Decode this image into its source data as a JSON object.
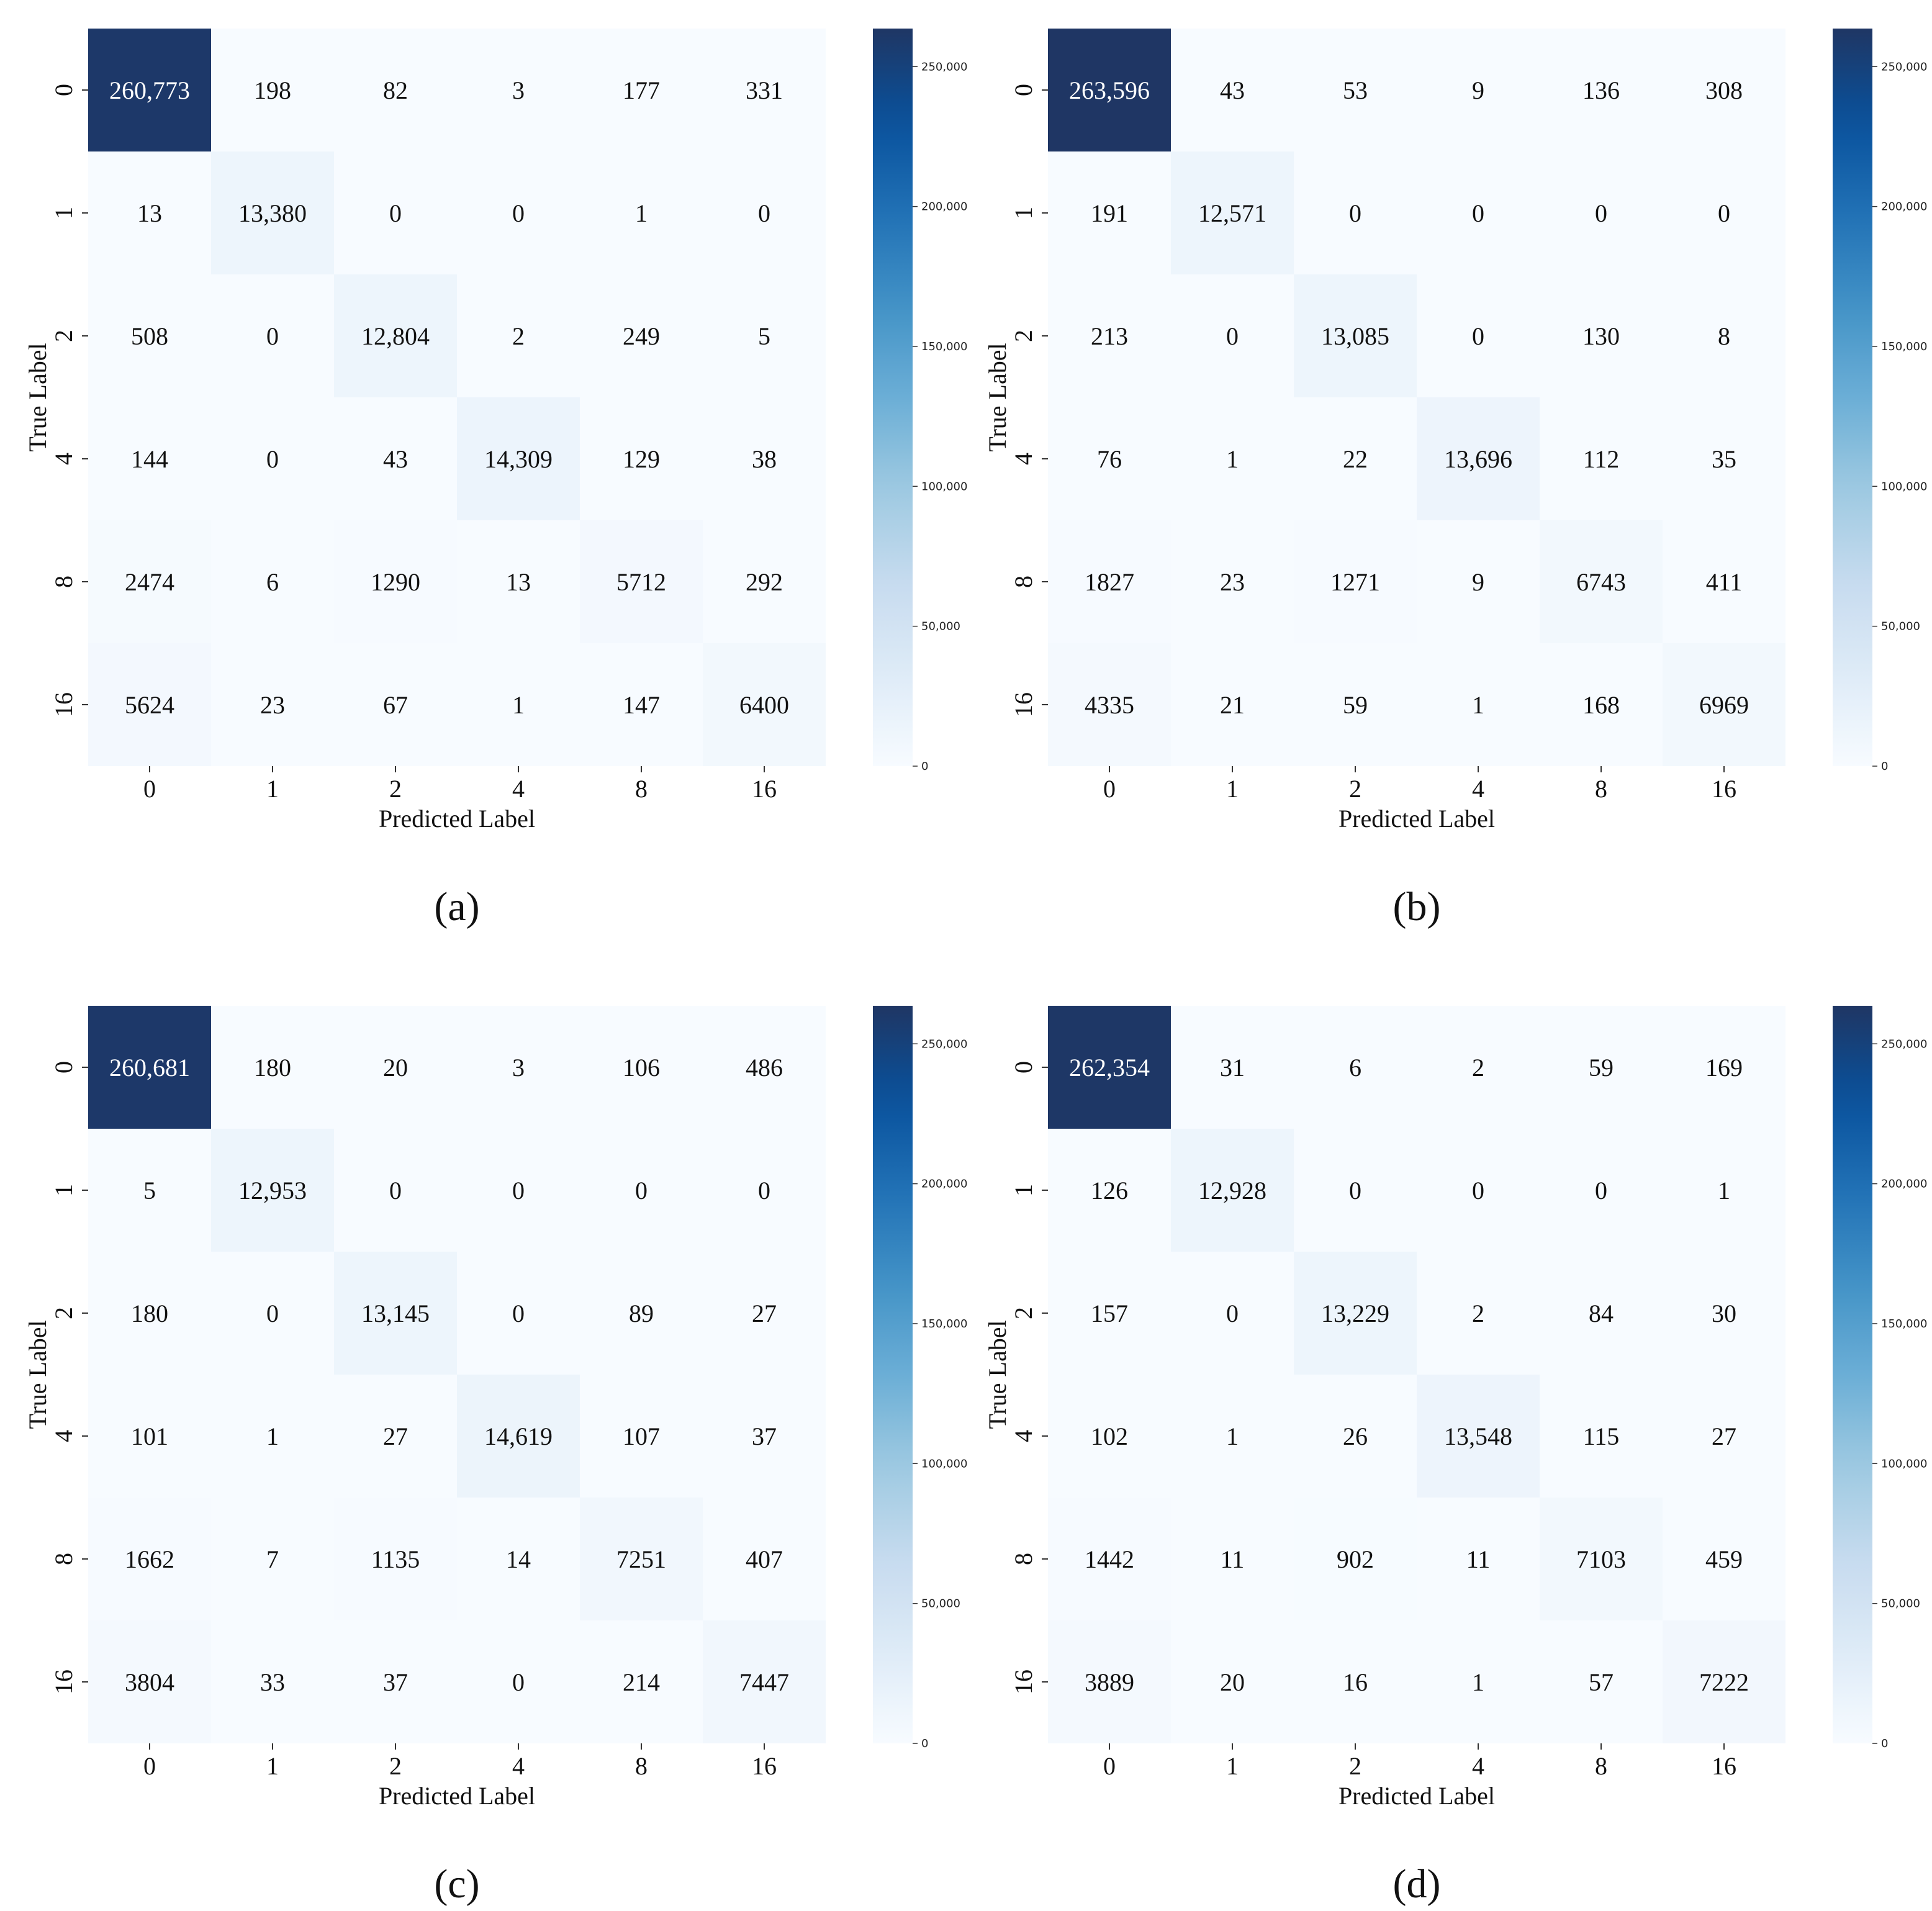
{
  "chart_data": [
    {
      "type": "heatmap",
      "caption": "(a)",
      "xlabel": "Predicted Label",
      "ylabel": "True Label",
      "x_categories": [
        "0",
        "1",
        "2",
        "4",
        "8",
        "16"
      ],
      "y_categories": [
        "0",
        "1",
        "2",
        "4",
        "8",
        "16"
      ],
      "values": [
        [
          260773,
          198,
          82,
          3,
          177,
          331
        ],
        [
          13,
          13380,
          0,
          0,
          1,
          0
        ],
        [
          508,
          0,
          12804,
          2,
          249,
          5
        ],
        [
          144,
          0,
          43,
          14309,
          129,
          38
        ],
        [
          2474,
          6,
          1290,
          13,
          5712,
          292
        ],
        [
          5624,
          23,
          67,
          1,
          147,
          6400
        ]
      ],
      "cell_labels": [
        [
          "260,773",
          "198",
          "82",
          "3",
          "177",
          "331"
        ],
        [
          "13",
          "13,380",
          "0",
          "0",
          "1",
          "0"
        ],
        [
          "508",
          "0",
          "12,804",
          "2",
          "249",
          "5"
        ],
        [
          "144",
          "0",
          "43",
          "14,309",
          "129",
          "38"
        ],
        [
          "2474",
          "6",
          "1290",
          "13",
          "5712",
          "292"
        ],
        [
          "5624",
          "23",
          "67",
          "1",
          "147",
          "6400"
        ]
      ],
      "colorbar": {
        "range": [
          0,
          263596
        ],
        "ticks": [
          0,
          50000,
          100000,
          150000,
          200000,
          250000
        ],
        "tick_labels": [
          "0",
          "50,000",
          "100,000",
          "150,000",
          "200,000",
          "250,000"
        ],
        "colormap": "Blues"
      }
    },
    {
      "type": "heatmap",
      "caption": "(b)",
      "xlabel": "Predicted Label",
      "ylabel": "True Label",
      "x_categories": [
        "0",
        "1",
        "2",
        "4",
        "8",
        "16"
      ],
      "y_categories": [
        "0",
        "1",
        "2",
        "4",
        "8",
        "16"
      ],
      "values": [
        [
          263596,
          43,
          53,
          9,
          136,
          308
        ],
        [
          191,
          12571,
          0,
          0,
          0,
          0
        ],
        [
          213,
          0,
          13085,
          0,
          130,
          8
        ],
        [
          76,
          1,
          22,
          13696,
          112,
          35
        ],
        [
          1827,
          23,
          1271,
          9,
          6743,
          411
        ],
        [
          4335,
          21,
          59,
          1,
          168,
          6969
        ]
      ],
      "cell_labels": [
        [
          "263,596",
          "43",
          "53",
          "9",
          "136",
          "308"
        ],
        [
          "191",
          "12,571",
          "0",
          "0",
          "0",
          "0"
        ],
        [
          "213",
          "0",
          "13,085",
          "0",
          "130",
          "8"
        ],
        [
          "76",
          "1",
          "22",
          "13,696",
          "112",
          "35"
        ],
        [
          "1827",
          "23",
          "1271",
          "9",
          "6743",
          "411"
        ],
        [
          "4335",
          "21",
          "59",
          "1",
          "168",
          "6969"
        ]
      ],
      "colorbar": {
        "range": [
          0,
          263596
        ],
        "ticks": [
          0,
          50000,
          100000,
          150000,
          200000,
          250000
        ],
        "tick_labels": [
          "0",
          "50,000",
          "100,000",
          "150,000",
          "200,000",
          "250,000"
        ],
        "colormap": "Blues"
      }
    },
    {
      "type": "heatmap",
      "caption": "(c)",
      "xlabel": "Predicted Label",
      "ylabel": "True Label",
      "x_categories": [
        "0",
        "1",
        "2",
        "4",
        "8",
        "16"
      ],
      "y_categories": [
        "0",
        "1",
        "2",
        "4",
        "8",
        "16"
      ],
      "values": [
        [
          260681,
          180,
          20,
          3,
          106,
          486
        ],
        [
          5,
          12953,
          0,
          0,
          0,
          0
        ],
        [
          180,
          0,
          13145,
          0,
          89,
          27
        ],
        [
          101,
          1,
          27,
          14619,
          107,
          37
        ],
        [
          1662,
          7,
          1135,
          14,
          7251,
          407
        ],
        [
          3804,
          33,
          37,
          0,
          214,
          7447
        ]
      ],
      "cell_labels": [
        [
          "260,681",
          "180",
          "20",
          "3",
          "106",
          "486"
        ],
        [
          "5",
          "12,953",
          "0",
          "0",
          "0",
          "0"
        ],
        [
          "180",
          "0",
          "13,145",
          "0",
          "89",
          "27"
        ],
        [
          "101",
          "1",
          "27",
          "14,619",
          "107",
          "37"
        ],
        [
          "1662",
          "7",
          "1135",
          "14",
          "7251",
          "407"
        ],
        [
          "3804",
          "33",
          "37",
          "0",
          "214",
          "7447"
        ]
      ],
      "colorbar": {
        "range": [
          0,
          263596
        ],
        "ticks": [
          0,
          50000,
          100000,
          150000,
          200000,
          250000
        ],
        "tick_labels": [
          "0",
          "50,000",
          "100,000",
          "150,000",
          "200,000",
          "250,000"
        ],
        "colormap": "Blues"
      }
    },
    {
      "type": "heatmap",
      "caption": "(d)",
      "xlabel": "Predicted Label",
      "ylabel": "True Label",
      "x_categories": [
        "0",
        "1",
        "2",
        "4",
        "8",
        "16"
      ],
      "y_categories": [
        "0",
        "1",
        "2",
        "4",
        "8",
        "16"
      ],
      "values": [
        [
          262354,
          31,
          6,
          2,
          59,
          169
        ],
        [
          126,
          12928,
          0,
          0,
          0,
          1
        ],
        [
          157,
          0,
          13229,
          2,
          84,
          30
        ],
        [
          102,
          1,
          26,
          13548,
          115,
          27
        ],
        [
          1442,
          11,
          902,
          11,
          7103,
          459
        ],
        [
          3889,
          20,
          16,
          1,
          57,
          7222
        ]
      ],
      "cell_labels": [
        [
          "262,354",
          "31",
          "6",
          "2",
          "59",
          "169"
        ],
        [
          "126",
          "12,928",
          "0",
          "0",
          "0",
          "1"
        ],
        [
          "157",
          "0",
          "13,229",
          "2",
          "84",
          "30"
        ],
        [
          "102",
          "1",
          "26",
          "13,548",
          "115",
          "27"
        ],
        [
          "1442",
          "11",
          "902",
          "11",
          "7103",
          "459"
        ],
        [
          "3889",
          "20",
          "16",
          "1",
          "57",
          "7222"
        ]
      ],
      "colorbar": {
        "range": [
          0,
          263596
        ],
        "ticks": [
          0,
          50000,
          100000,
          150000,
          200000,
          250000
        ],
        "tick_labels": [
          "0",
          "50,000",
          "100,000",
          "150,000",
          "200,000",
          "250,000"
        ],
        "colormap": "Blues"
      }
    }
  ]
}
